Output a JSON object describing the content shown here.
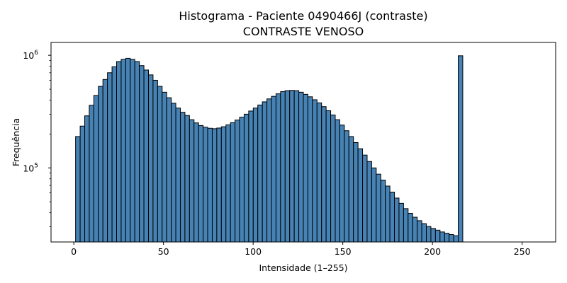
{
  "chart_data": {
    "type": "bar",
    "title": "Histograma - Paciente 0490466J (contraste)",
    "subtitle": "CONTRASTE VENOSO",
    "xlabel": "Intensidade (1–255)",
    "ylabel": "Frequência",
    "yscale": "log",
    "xlim": [
      -12.7,
      268.7
    ],
    "ylim": [
      22000,
      1300000
    ],
    "x_ticks": [
      0,
      50,
      100,
      150,
      200,
      250
    ],
    "y_ticks": [
      {
        "value": 100000,
        "base": "10",
        "exp": "5"
      },
      {
        "value": 1000000,
        "base": "10",
        "exp": "6"
      }
    ],
    "bin_start": 1,
    "bin_width": 2.54,
    "bar_color": "#4682b4",
    "edge_color": "#000000",
    "values": [
      190000,
      235000,
      290000,
      360000,
      440000,
      530000,
      610000,
      700000,
      790000,
      880000,
      920000,
      940000,
      920000,
      880000,
      810000,
      740000,
      670000,
      600000,
      530000,
      470000,
      420000,
      375000,
      340000,
      312000,
      292000,
      268000,
      251000,
      238000,
      230000,
      225000,
      223000,
      226000,
      232000,
      241000,
      252000,
      266000,
      282000,
      300000,
      320000,
      340000,
      362000,
      386000,
      410000,
      432000,
      455000,
      476000,
      485000,
      488000,
      485000,
      470000,
      450000,
      428000,
      403000,
      378000,
      350000,
      322000,
      295000,
      268000,
      240000,
      214000,
      190000,
      168000,
      148000,
      130000,
      114000,
      100000,
      88000,
      78000,
      69000,
      61000,
      54000,
      48500,
      43500,
      39500,
      36500,
      34000,
      32000,
      30200,
      29000,
      28000,
      27000,
      26300,
      25600,
      25000,
      990000
    ]
  }
}
